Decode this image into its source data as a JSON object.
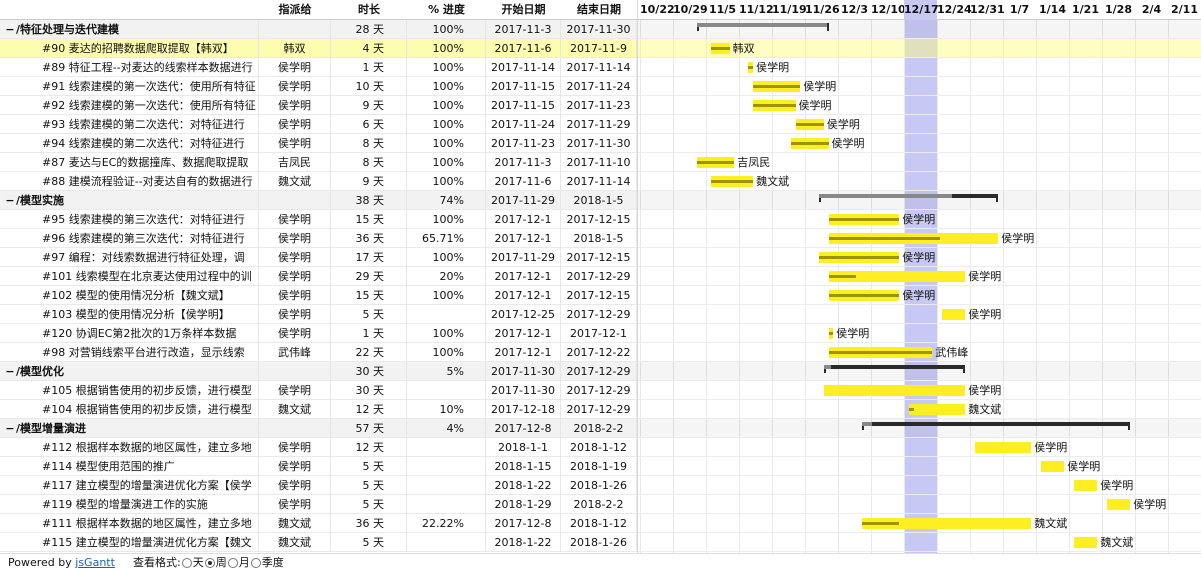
{
  "grid_header": {
    "assignee": "指派给",
    "duration": "时长",
    "progress": "% 进度",
    "start": "开始日期",
    "end": "结束日期"
  },
  "timeline_ticks": [
    "10/22",
    "10/29",
    "11/5",
    "11/12",
    "11/19",
    "11/26",
    "12/3",
    "12/10",
    "12/17",
    "12/24",
    "12/31",
    "1/7",
    "1/14",
    "1/21",
    "1/28",
    "2/4",
    "2/11"
  ],
  "today_tick": "12/17",
  "rows": [
    {
      "type": "group",
      "toggle": "−",
      "name": "/特征处理与迭代建模",
      "assignee": "",
      "duration": "28 天",
      "progress": "100%",
      "start": "2017-11-3",
      "end": "2017-11-30",
      "pct": 1
    },
    {
      "type": "task",
      "name": "#90 麦达的招聘数据爬取提取【韩双】",
      "assignee": "韩双",
      "duration": "4 天",
      "progress": "100%",
      "start": "2017-11-6",
      "end": "2017-11-9",
      "pct": 1,
      "selected": true
    },
    {
      "type": "task",
      "name": "#89 特征工程--对麦达的线索样本数据进行",
      "assignee": "侯学明",
      "duration": "1 天",
      "progress": "100%",
      "start": "2017-11-14",
      "end": "2017-11-14",
      "pct": 1
    },
    {
      "type": "task",
      "name": "#91 线索建模的第一次迭代：使用所有特征",
      "assignee": "侯学明",
      "duration": "10 天",
      "progress": "100%",
      "start": "2017-11-15",
      "end": "2017-11-24",
      "pct": 1
    },
    {
      "type": "task",
      "name": "#92 线索建模的第一次迭代：使用所有特征",
      "assignee": "侯学明",
      "duration": "9 天",
      "progress": "100%",
      "start": "2017-11-15",
      "end": "2017-11-23",
      "pct": 1
    },
    {
      "type": "task",
      "name": "#93 线索建模的第二次迭代：对特征进行",
      "assignee": "侯学明",
      "duration": "6 天",
      "progress": "100%",
      "start": "2017-11-24",
      "end": "2017-11-29",
      "pct": 1
    },
    {
      "type": "task",
      "name": "#94 线索建模的第二次迭代：对特征进行",
      "assignee": "侯学明",
      "duration": "8 天",
      "progress": "100%",
      "start": "2017-11-23",
      "end": "2017-11-30",
      "pct": 1
    },
    {
      "type": "task",
      "name": "#87 麦达与EC的数据撞库、数据爬取提取",
      "assignee": "吉凤民",
      "duration": "8 天",
      "progress": "100%",
      "start": "2017-11-3",
      "end": "2017-11-10",
      "pct": 1
    },
    {
      "type": "task",
      "name": "#88 建模流程验证--对麦达自有的数据进行",
      "assignee": "魏文斌",
      "duration": "9 天",
      "progress": "100%",
      "start": "2017-11-6",
      "end": "2017-11-14",
      "pct": 1
    },
    {
      "type": "group",
      "toggle": "−",
      "name": "/模型实施",
      "assignee": "",
      "duration": "38 天",
      "progress": "74%",
      "start": "2017-11-29",
      "end": "2018-1-5",
      "pct": 0.74
    },
    {
      "type": "task",
      "name": "#95 线索建模的第三次迭代：对特征进行",
      "assignee": "侯学明",
      "duration": "15 天",
      "progress": "100%",
      "start": "2017-12-1",
      "end": "2017-12-15",
      "pct": 1
    },
    {
      "type": "task",
      "name": "#96 线索建模的第三次迭代：对特征进行",
      "assignee": "侯学明",
      "duration": "36 天",
      "progress": "65.71%",
      "start": "2017-12-1",
      "end": "2018-1-5",
      "pct": 0.6571
    },
    {
      "type": "task",
      "name": "#97 编程：对线索数据进行特征处理，调",
      "assignee": "侯学明",
      "duration": "17 天",
      "progress": "100%",
      "start": "2017-11-29",
      "end": "2017-12-15",
      "pct": 1
    },
    {
      "type": "task",
      "name": "#101 线索模型在北京麦达使用过程中的训",
      "assignee": "侯学明",
      "duration": "29 天",
      "progress": "20%",
      "start": "2017-12-1",
      "end": "2017-12-29",
      "pct": 0.2
    },
    {
      "type": "task",
      "name": "#102 模型的使用情况分析【魏文斌】",
      "assignee": "侯学明",
      "duration": "15 天",
      "progress": "100%",
      "start": "2017-12-1",
      "end": "2017-12-15",
      "pct": 1
    },
    {
      "type": "task",
      "name": "#103 模型的使用情况分析【侯学明】",
      "assignee": "侯学明",
      "duration": "5 天",
      "progress": "",
      "start": "2017-12-25",
      "end": "2017-12-29",
      "pct": 0
    },
    {
      "type": "task",
      "name": "#120 协调EC第2批次的1万条样本数据",
      "assignee": "侯学明",
      "duration": "1 天",
      "progress": "100%",
      "start": "2017-12-1",
      "end": "2017-12-1",
      "pct": 1
    },
    {
      "type": "task",
      "name": "#98 对营销线索平台进行改造，显示线索",
      "assignee": "武伟峰",
      "duration": "22 天",
      "progress": "100%",
      "start": "2017-12-1",
      "end": "2017-12-22",
      "pct": 1
    },
    {
      "type": "group",
      "toggle": "−",
      "name": "/模型优化",
      "assignee": "",
      "duration": "30 天",
      "progress": "5%",
      "start": "2017-11-30",
      "end": "2017-12-29",
      "pct": 0.05
    },
    {
      "type": "task",
      "name": "#105 根据销售使用的初步反馈，进行模型",
      "assignee": "侯学明",
      "duration": "30 天",
      "progress": "",
      "start": "2017-11-30",
      "end": "2017-12-29",
      "pct": 0
    },
    {
      "type": "task",
      "name": "#104 根据销售使用的初步反馈，进行模型",
      "assignee": "魏文斌",
      "duration": "12 天",
      "progress": "10%",
      "start": "2017-12-18",
      "end": "2017-12-29",
      "pct": 0.1
    },
    {
      "type": "group",
      "toggle": "−",
      "name": "/模型增量演进",
      "assignee": "",
      "duration": "57 天",
      "progress": "4%",
      "start": "2017-12-8",
      "end": "2018-2-2",
      "pct": 0.04
    },
    {
      "type": "task",
      "name": "#112 根据样本数据的地区属性，建立多地",
      "assignee": "侯学明",
      "duration": "12 天",
      "progress": "",
      "start": "2018-1-1",
      "end": "2018-1-12",
      "pct": 0
    },
    {
      "type": "task",
      "name": "#114 模型使用范围的推广",
      "assignee": "侯学明",
      "duration": "5 天",
      "progress": "",
      "start": "2018-1-15",
      "end": "2018-1-19",
      "pct": 0
    },
    {
      "type": "task",
      "name": "#117 建立模型的增量演进优化方案【侯学",
      "assignee": "侯学明",
      "duration": "5 天",
      "progress": "",
      "start": "2018-1-22",
      "end": "2018-1-26",
      "pct": 0
    },
    {
      "type": "task",
      "name": "#119 模型的增量演进工作的实施",
      "assignee": "侯学明",
      "duration": "5 天",
      "progress": "",
      "start": "2018-1-29",
      "end": "2018-2-2",
      "pct": 0
    },
    {
      "type": "task",
      "name": "#111 根据样本数据的地区属性，建立多地",
      "assignee": "魏文斌",
      "duration": "36 天",
      "progress": "22.22%",
      "start": "2017-12-8",
      "end": "2018-1-12",
      "pct": 0.2222
    },
    {
      "type": "task",
      "name": "#115 建立模型的增量演进优化方案【魏文",
      "assignee": "魏文斌",
      "duration": "5 天",
      "progress": "",
      "start": "2018-1-22",
      "end": "2018-1-26",
      "pct": 0
    }
  ],
  "footer": {
    "powered_by": "Powered by ",
    "brand": "jsGantt",
    "view_format": "查看格式:",
    "formats": [
      {
        "label": "天",
        "selected": false
      },
      {
        "label": "周",
        "selected": true
      },
      {
        "label": "月",
        "selected": false
      },
      {
        "label": "季度",
        "selected": false
      }
    ]
  },
  "colors": {
    "task_bar": "#ffee22",
    "progress": "#9c9400",
    "group_bar": "#2a2a2a",
    "today": "#c8c8f4",
    "selected_row": "#fdfdb0"
  }
}
